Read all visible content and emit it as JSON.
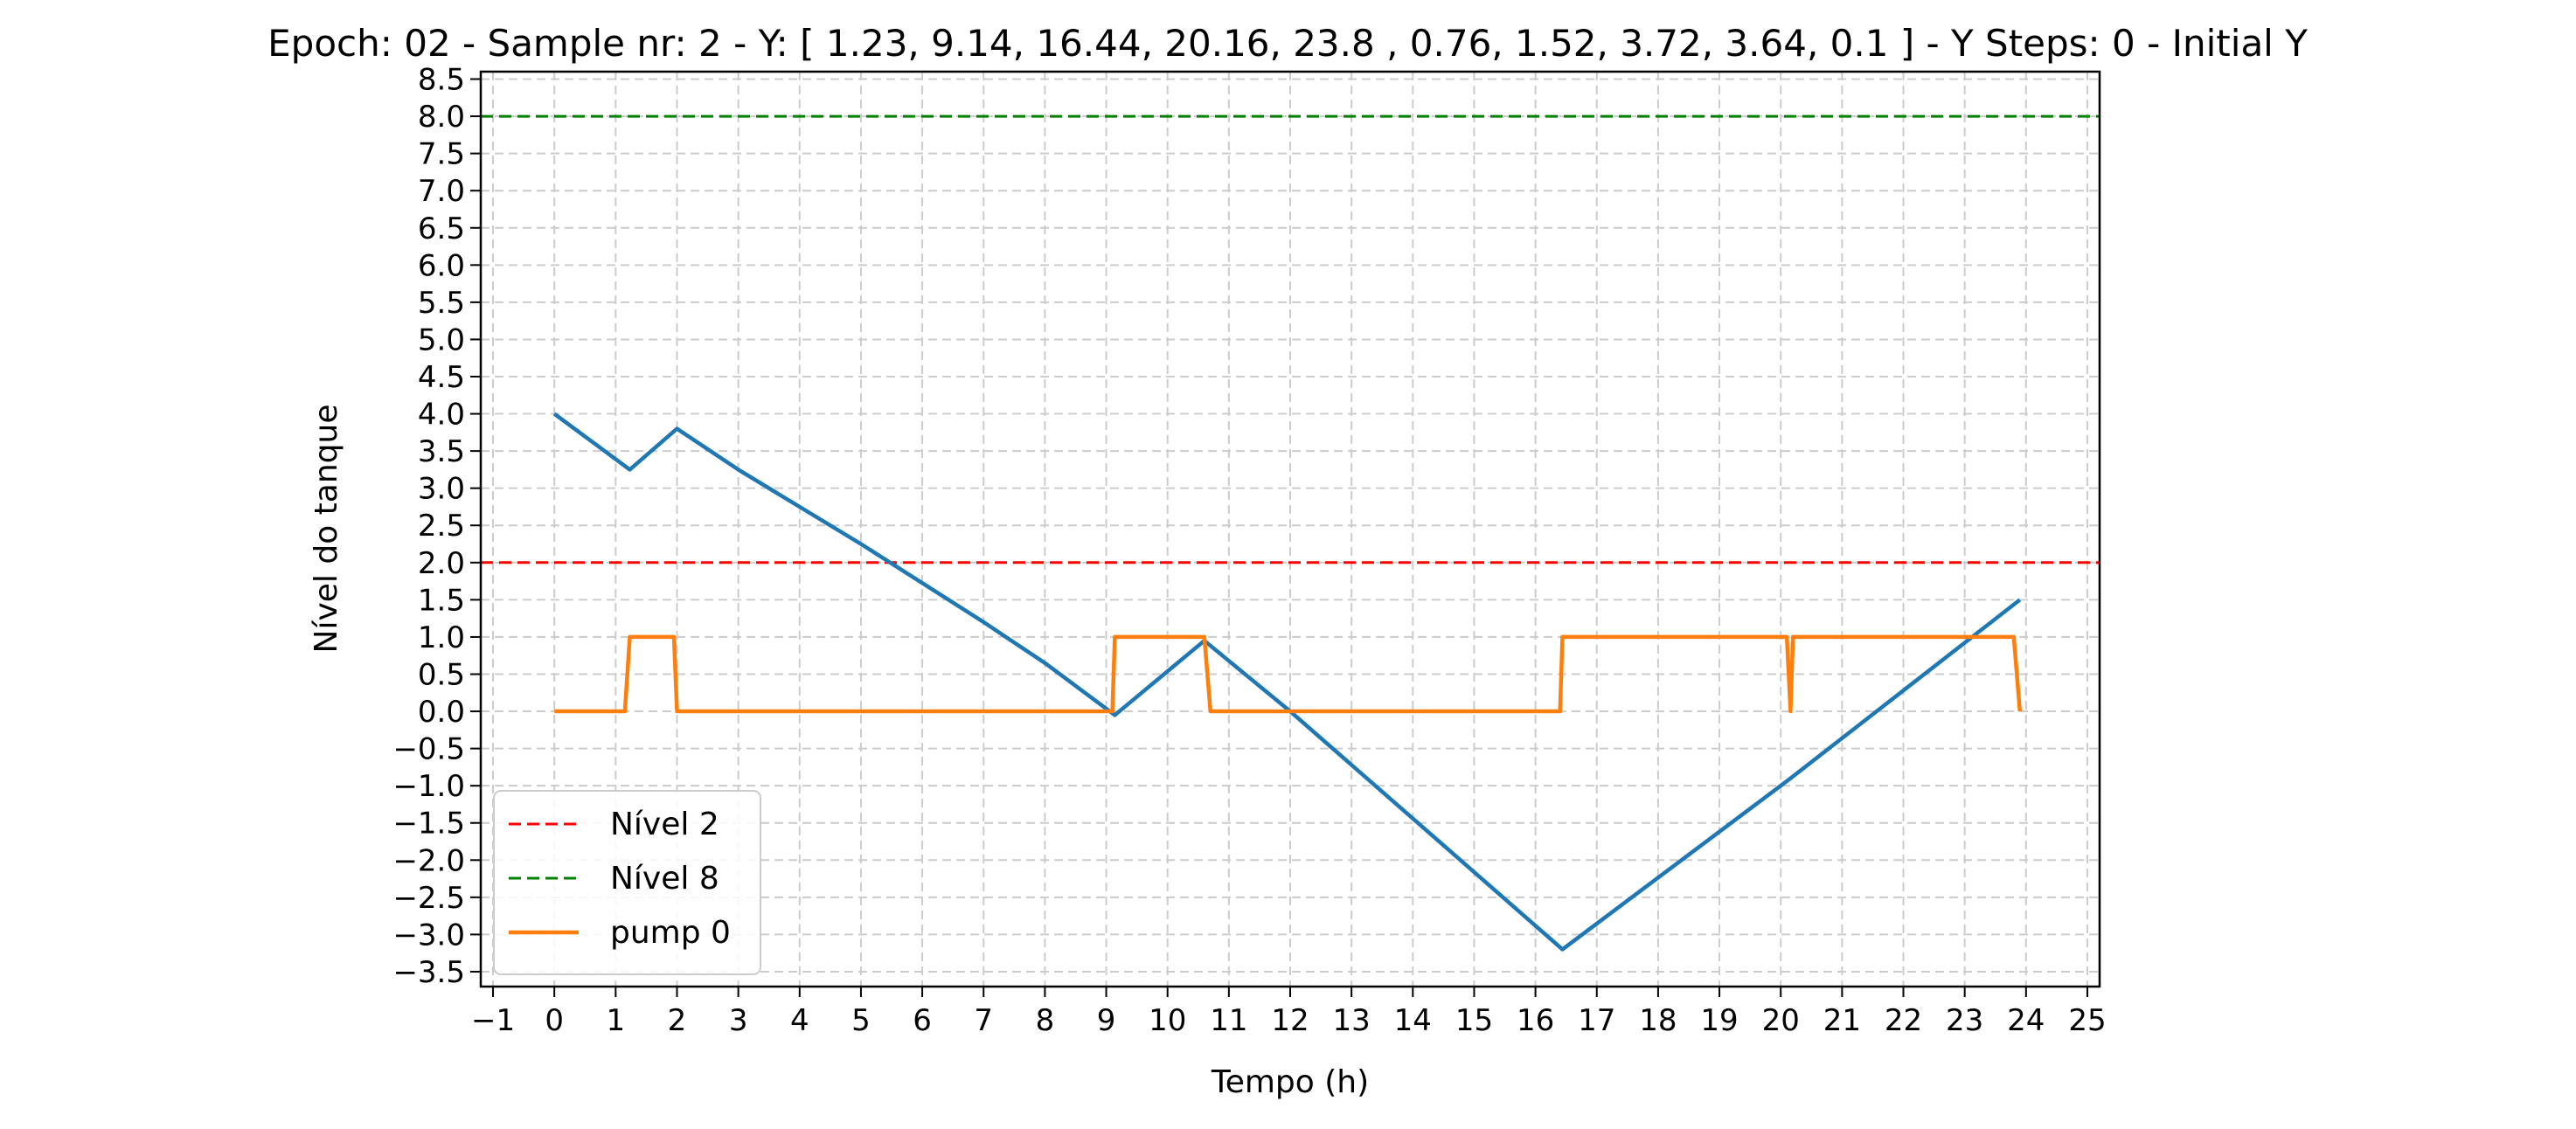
{
  "chart_data": {
    "type": "line",
    "title": "Epoch: 02 - Sample nr: 2 - Y: [ 1.23,  9.14, 16.44, 20.16, 23.8 ,  0.76,  1.52,  3.72,  3.64,  0.1 ] - Y Steps: 0  - Initial Y",
    "xlabel": "Tempo (h)",
    "ylabel": "Nível do tanque",
    "xlim": [
      -1.2,
      25.2
    ],
    "ylim": [
      -3.7,
      8.6
    ],
    "xticks": [
      -1,
      0,
      1,
      2,
      3,
      4,
      5,
      6,
      7,
      8,
      9,
      10,
      11,
      12,
      13,
      14,
      15,
      16,
      17,
      18,
      19,
      20,
      21,
      22,
      23,
      24,
      25
    ],
    "xtick_labels": [
      "−1",
      "0",
      "1",
      "2",
      "3",
      "4",
      "5",
      "6",
      "7",
      "8",
      "9",
      "10",
      "11",
      "12",
      "13",
      "14",
      "15",
      "16",
      "17",
      "18",
      "19",
      "20",
      "21",
      "22",
      "23",
      "24",
      "25"
    ],
    "yticks": [
      -3.5,
      -3.0,
      -2.5,
      -2.0,
      -1.5,
      -1.0,
      -0.5,
      0.0,
      0.5,
      1.0,
      1.5,
      2.0,
      2.5,
      3.0,
      3.5,
      4.0,
      4.5,
      5.0,
      5.5,
      6.0,
      6.5,
      7.0,
      7.5,
      8.0,
      8.5
    ],
    "ytick_labels": [
      "−3.5",
      "−3.0",
      "−2.5",
      "−2.0",
      "−1.5",
      "−1.0",
      "−0.5",
      "0.0",
      "0.5",
      "1.0",
      "1.5",
      "2.0",
      "2.5",
      "3.0",
      "3.5",
      "4.0",
      "4.5",
      "5.0",
      "5.5",
      "6.0",
      "6.5",
      "7.0",
      "7.5",
      "8.0",
      "8.5"
    ],
    "grid": true,
    "legend_position": "lower-left",
    "hlines": [
      {
        "name": "Nível 2",
        "y": 2.0,
        "color": "#ff0000",
        "style": "dashed"
      },
      {
        "name": "Nível 8",
        "y": 8.0,
        "color": "#008000",
        "style": "dashed"
      }
    ],
    "series": [
      {
        "key": "level",
        "color": "#1f77b4",
        "points": [
          [
            0,
            4.0
          ],
          [
            1.23,
            3.25
          ],
          [
            2.0,
            3.8
          ],
          [
            3.0,
            3.25
          ],
          [
            5.0,
            2.25
          ],
          [
            7.0,
            1.2
          ],
          [
            8.0,
            0.65
          ],
          [
            9.14,
            -0.05
          ],
          [
            10.6,
            0.95
          ],
          [
            12.0,
            0.0
          ],
          [
            16.44,
            -3.2
          ],
          [
            20.16,
            -0.9
          ],
          [
            23.9,
            1.5
          ]
        ]
      },
      {
        "key": "pump",
        "name": "pump 0",
        "color": "#ff7f0e",
        "points": [
          [
            0,
            0
          ],
          [
            1.15,
            0
          ],
          [
            1.23,
            1
          ],
          [
            1.95,
            1
          ],
          [
            2.0,
            0
          ],
          [
            9.1,
            0
          ],
          [
            9.14,
            1
          ],
          [
            10.6,
            1
          ],
          [
            10.7,
            0
          ],
          [
            16.4,
            0
          ],
          [
            16.44,
            1
          ],
          [
            20.1,
            1
          ],
          [
            20.16,
            0
          ],
          [
            20.2,
            1
          ],
          [
            23.8,
            1
          ],
          [
            23.9,
            0
          ]
        ]
      }
    ],
    "legend": [
      {
        "label": "Nível 2",
        "color": "#ff0000",
        "style": "dashed"
      },
      {
        "label": "Nível 8",
        "color": "#008000",
        "style": "dashed"
      },
      {
        "label": "pump 0",
        "color": "#ff7f0e",
        "style": "solid"
      }
    ]
  }
}
